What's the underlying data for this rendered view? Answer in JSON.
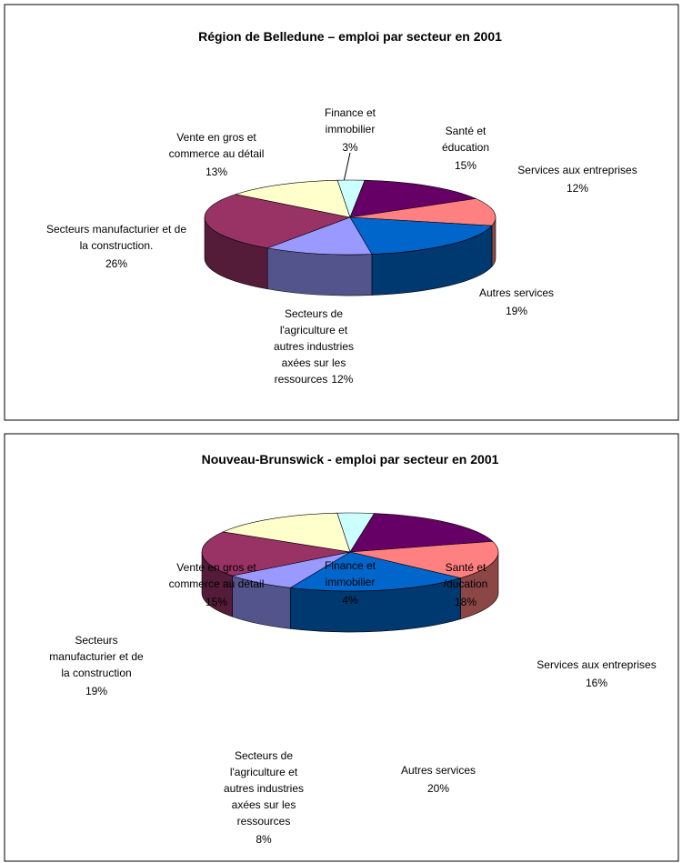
{
  "chart_data": [
    {
      "type": "pie",
      "title": "Région de Belledune – emploi par secteur en 2001",
      "categories": [
        [
          "Finance et",
          "immobilier"
        ],
        [
          "Santé et",
          "éducation"
        ],
        [
          "Services aux entreprises"
        ],
        [
          "Autres services"
        ],
        [
          "Secteurs  de",
          "l'agriculture et",
          "autres industries",
          "axées sur les",
          "ressources"
        ],
        [
          "Secteurs manufacturier et de",
          "la construction."
        ],
        [
          "Vente en gros et",
          "commerce au détail"
        ]
      ],
      "values": [
        3,
        15,
        12,
        19,
        12,
        26,
        13
      ],
      "value_labels": [
        "3%",
        "15%",
        "12%",
        "19%",
        "12%",
        "26%",
        "13%"
      ],
      "colors": [
        "#ccffff",
        "#660066",
        "#ff8080",
        "#0066cc",
        "#9999ff",
        "#993366",
        "#ffffcc"
      ]
    },
    {
      "type": "pie",
      "title": "Nouveau-Brunswick - emploi par secteur en 2001",
      "categories": [
        [
          "Finance et",
          "immobilier"
        ],
        [
          "Santé et",
          "/ducation"
        ],
        [
          "Services aux entreprises"
        ],
        [
          "Autres services"
        ],
        [
          "Secteurs  de",
          "l'agriculture et",
          "autres industries",
          "axées sur les",
          "ressources"
        ],
        [
          "Secteurs",
          "manufacturier et de",
          "la construction"
        ],
        [
          "Vente en gros et",
          "commerce au détail"
        ]
      ],
      "values": [
        4,
        18,
        16,
        20,
        8,
        19,
        15
      ],
      "value_labels": [
        "4%",
        "18%",
        "16%",
        "20%",
        "8%",
        "19%",
        "15%"
      ],
      "colors": [
        "#ccffff",
        "#660066",
        "#ff8080",
        "#0066cc",
        "#9999ff",
        "#993366",
        "#ffffcc"
      ]
    }
  ]
}
